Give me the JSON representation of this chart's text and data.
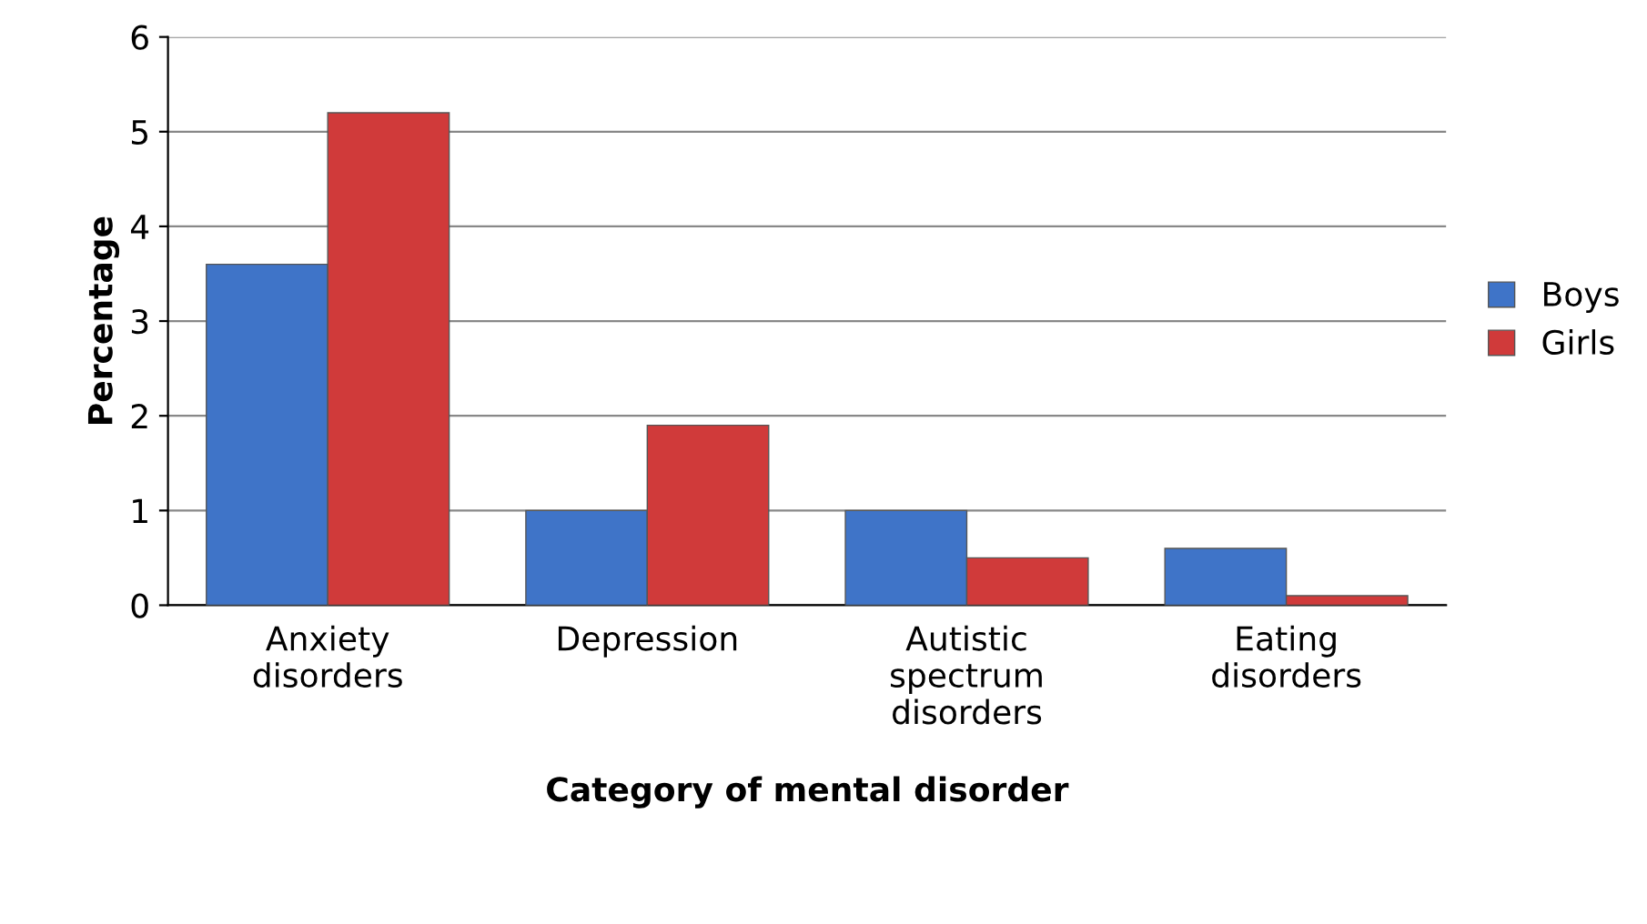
{
  "chart_data": {
    "type": "bar",
    "xlabel": "Category of mental disorder",
    "ylabel": "Percentage",
    "categories": [
      "Anxiety\ndisorders",
      "Depression",
      "Autistic\nspectrum\ndisorders",
      "Eating\ndisorders"
    ],
    "series": [
      {
        "name": "Boys",
        "color": "#3f74c8",
        "values": [
          3.6,
          1.0,
          1.0,
          0.6
        ]
      },
      {
        "name": "Girls",
        "color": "#d03a3a",
        "values": [
          5.2,
          1.9,
          0.5,
          0.1
        ]
      }
    ],
    "ylim": [
      0,
      6
    ],
    "yticks": [
      0,
      1,
      2,
      3,
      4,
      5,
      6
    ],
    "grid": "y",
    "legend": "right"
  }
}
